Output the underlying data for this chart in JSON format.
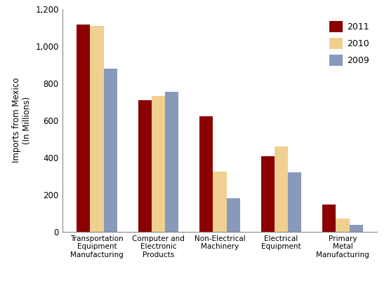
{
  "categories": [
    "Transportation\nEquipment\nManufacturing",
    "Computer and\nElectronic\nProducts",
    "Non-Electrical\nMachinery",
    "Electrical\nEquipment",
    "Primary\nMetal\nManufacturing"
  ],
  "series": {
    "2011": [
      1115,
      710,
      620,
      405,
      145
    ],
    "2010": [
      1110,
      730,
      325,
      460,
      70
    ],
    "2009": [
      880,
      755,
      180,
      320,
      38
    ]
  },
  "colors": {
    "2011": "#8B0000",
    "2010": "#F0D090",
    "2009": "#8899BB"
  },
  "ylabel": "Imports from Mexico\n(In Millions)",
  "ylim": [
    0,
    1200
  ],
  "yticks": [
    0,
    200,
    400,
    600,
    800,
    1000,
    1200
  ],
  "legend_labels": [
    "2011",
    "2010",
    "2009"
  ],
  "bar_width": 0.22,
  "background_color": "#ffffff"
}
